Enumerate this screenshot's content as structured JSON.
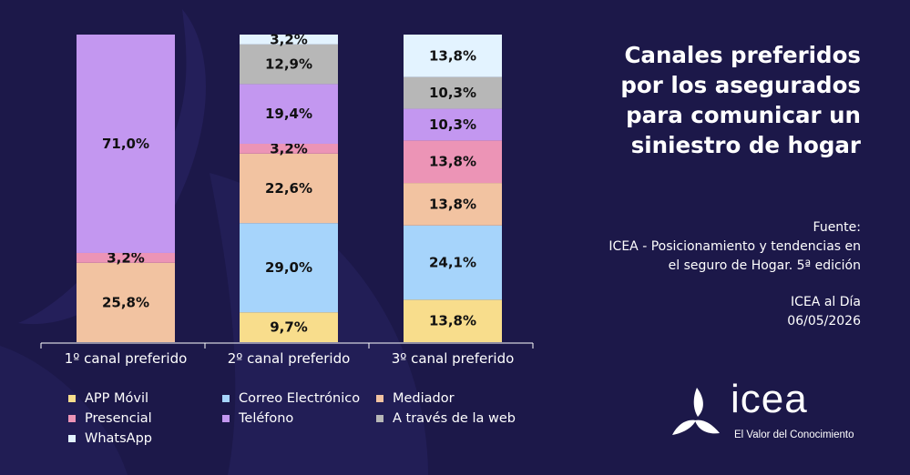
{
  "title_lines": [
    "Canales preferidos",
    "por los asegurados",
    "para comunicar un",
    "siniestro de hogar"
  ],
  "source_lines": [
    "Fuente:",
    "ICEA - Posicionamiento y tendencias en",
    "el seguro de Hogar. 5ª edición"
  ],
  "publication_lines": [
    "ICEA al Día",
    "06/05/2026"
  ],
  "logo": {
    "word": "icea",
    "tagline": "El Valor del Conocimiento",
    "icon": "icea-triskelion-logo"
  },
  "colors": {
    "background": "#1c1849",
    "APP Móvil": "#f8dd8c",
    "Correo Electrónico": "#a6d4fb",
    "Mediador": "#f2c3a1",
    "Presencial": "#ec94b6",
    "Teléfono": "#c397f0",
    "A través de la web": "#b7b7b7",
    "WhatsApp": "#e3f3ff"
  },
  "chart_data": {
    "type": "bar",
    "stacked": true,
    "normalized_100": true,
    "categories": [
      "1º canal preferido",
      "2º canal preferido",
      "3º canal preferido"
    ],
    "series": [
      {
        "name": "APP Móvil",
        "values": [
          0,
          9.7,
          13.8
        ],
        "labels": [
          "",
          "9,7%",
          "13,8%"
        ]
      },
      {
        "name": "Correo Electrónico",
        "values": [
          0,
          29.0,
          24.1
        ],
        "labels": [
          "",
          "29,0%",
          "24,1%"
        ]
      },
      {
        "name": "Mediador",
        "values": [
          25.8,
          22.6,
          13.8
        ],
        "labels": [
          "25,8%",
          "22,6%",
          "13,8%"
        ]
      },
      {
        "name": "Presencial",
        "values": [
          3.2,
          3.2,
          13.8
        ],
        "labels": [
          "3,2%",
          "3,2%",
          "13,8%"
        ]
      },
      {
        "name": "Teléfono",
        "values": [
          71.0,
          19.4,
          10.3
        ],
        "labels": [
          "71,0%",
          "19,4%",
          "10,3%"
        ]
      },
      {
        "name": "A través de la web",
        "values": [
          0,
          12.9,
          10.3
        ],
        "labels": [
          "",
          "12,9%",
          "10,3%"
        ]
      },
      {
        "name": "WhatsApp",
        "values": [
          0,
          3.2,
          13.8
        ],
        "labels": [
          "",
          "3,2%",
          "13,8%"
        ]
      }
    ],
    "legend": {
      "placement": "bottom-left",
      "items": [
        "APP Móvil",
        "Correo Electrónico",
        "Mediador",
        "Presencial",
        "Teléfono",
        "A través de la web",
        "WhatsApp"
      ]
    },
    "ylim": [
      0,
      100
    ],
    "grid": false
  }
}
